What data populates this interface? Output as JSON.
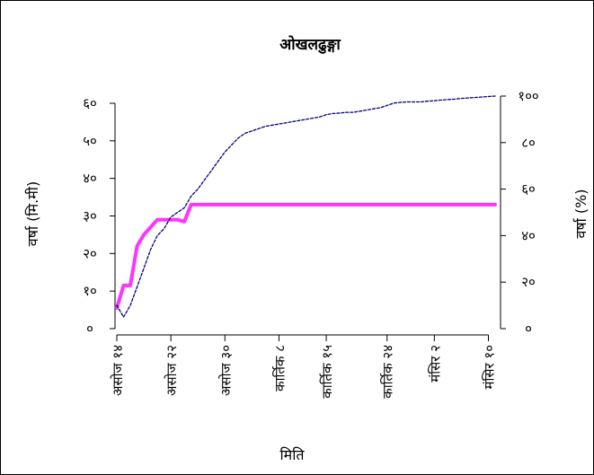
{
  "chart_data": {
    "type": "line",
    "title": "ओखलढुङ्गा",
    "xlabel": "मिति",
    "ylabel_left": "वर्षा (मि.मी)",
    "ylabel_right": "वर्षा (%)",
    "x_ticks": [
      {
        "day": 0,
        "label": "असोज १४"
      },
      {
        "day": 8,
        "label": "असोज २२"
      },
      {
        "day": 16,
        "label": "असोज ३०"
      },
      {
        "day": 24,
        "label": "कार्तिक ८"
      },
      {
        "day": 31,
        "label": "कार्तिक १५"
      },
      {
        "day": 40,
        "label": "कार्तिक २४"
      },
      {
        "day": 47,
        "label": "मंसिर २"
      },
      {
        "day": 55,
        "label": "मंसिर १०"
      }
    ],
    "xlim": [
      0,
      56
    ],
    "ylim_left": [
      0,
      60
    ],
    "yticks_left": [
      {
        "value": 0,
        "label": "०"
      },
      {
        "value": 10,
        "label": "१०"
      },
      {
        "value": 20,
        "label": "२०"
      },
      {
        "value": 30,
        "label": "३०"
      },
      {
        "value": 40,
        "label": "४०"
      },
      {
        "value": 50,
        "label": "५०"
      },
      {
        "value": 60,
        "label": "६०"
      }
    ],
    "ylim_right": [
      0,
      100
    ],
    "yticks_right": [
      {
        "value": 0,
        "label": "०"
      },
      {
        "value": 20,
        "label": "२०"
      },
      {
        "value": 40,
        "label": "४०"
      },
      {
        "value": 60,
        "label": "६०"
      },
      {
        "value": 80,
        "label": "८०"
      },
      {
        "value": 100,
        "label": "१००"
      }
    ],
    "series": [
      {
        "axis": "left",
        "color": "#ff33ff",
        "style": "solid",
        "points": [
          [
            0,
            5.5
          ],
          [
            1,
            11.5
          ],
          [
            2,
            11.5
          ],
          [
            3,
            22
          ],
          [
            4,
            25
          ],
          [
            5,
            27
          ],
          [
            6,
            29
          ],
          [
            7,
            29
          ],
          [
            8,
            29
          ],
          [
            9,
            29
          ],
          [
            10,
            28.5
          ],
          [
            11,
            33
          ],
          [
            12,
            33
          ],
          [
            20,
            33
          ],
          [
            30,
            33
          ],
          [
            40,
            33
          ],
          [
            50,
            33
          ],
          [
            56,
            33
          ]
        ]
      },
      {
        "axis": "right",
        "color": "#000080",
        "style": "dashed",
        "points": [
          [
            0,
            10
          ],
          [
            1,
            5
          ],
          [
            2,
            10
          ],
          [
            3,
            18
          ],
          [
            4,
            26
          ],
          [
            5,
            34
          ],
          [
            6,
            40
          ],
          [
            7,
            43
          ],
          [
            8,
            48
          ],
          [
            9,
            50
          ],
          [
            10,
            52
          ],
          [
            11,
            57
          ],
          [
            12,
            60
          ],
          [
            13,
            64
          ],
          [
            14,
            68
          ],
          [
            15,
            72
          ],
          [
            16,
            76
          ],
          [
            17,
            79
          ],
          [
            18,
            82
          ],
          [
            19,
            84
          ],
          [
            20,
            85
          ],
          [
            21,
            86
          ],
          [
            22,
            87
          ],
          [
            23,
            87.5
          ],
          [
            24,
            88
          ],
          [
            25,
            88.5
          ],
          [
            26,
            89
          ],
          [
            27,
            89.5
          ],
          [
            28,
            90
          ],
          [
            29,
            90.5
          ],
          [
            30,
            91
          ],
          [
            31,
            92
          ],
          [
            32,
            92.5
          ],
          [
            33,
            92.7
          ],
          [
            34,
            93
          ],
          [
            35,
            93
          ],
          [
            36,
            93.5
          ],
          [
            37,
            94
          ],
          [
            38,
            94.5
          ],
          [
            39,
            95
          ],
          [
            40,
            96
          ],
          [
            41,
            97
          ],
          [
            42,
            97.3
          ],
          [
            43,
            97.5
          ],
          [
            44,
            97.5
          ],
          [
            45,
            97.5
          ],
          [
            46,
            97.8
          ],
          [
            47,
            98
          ],
          [
            48,
            98.3
          ],
          [
            49,
            98.5
          ],
          [
            50,
            98.7
          ],
          [
            51,
            99
          ],
          [
            52,
            99.2
          ],
          [
            53,
            99.4
          ],
          [
            54,
            99.6
          ],
          [
            55,
            99.8
          ],
          [
            56,
            100
          ]
        ]
      }
    ]
  }
}
